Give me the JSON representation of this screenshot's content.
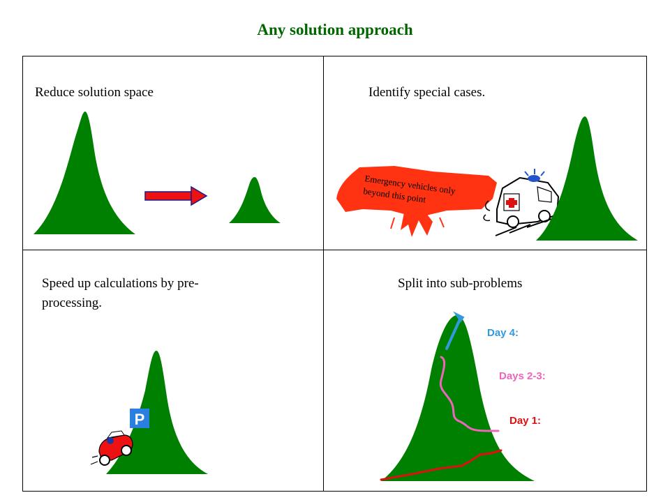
{
  "title": "Any solution approach",
  "panels": {
    "top_left": {
      "label": "Reduce solution space"
    },
    "top_right": {
      "label": "Identify special cases.",
      "sign_line1": "Emergency vehicles only",
      "sign_line2": "beyond this point"
    },
    "bottom_left": {
      "label_line1": "Speed up calculations by pre-",
      "label_line2": "processing.",
      "parking_sign": "P"
    },
    "bottom_right": {
      "label": "Split into sub-problems",
      "day4": "Day 4:",
      "days23": "Days 2-3:",
      "day1": "Day 1:"
    }
  },
  "colors": {
    "title": "#006600",
    "mountain": "#008000",
    "arrow": "#ee1111",
    "sign": "#ff3311",
    "day4": "#3399dd",
    "days23": "#ee66bb",
    "day1": "#dd1111"
  }
}
